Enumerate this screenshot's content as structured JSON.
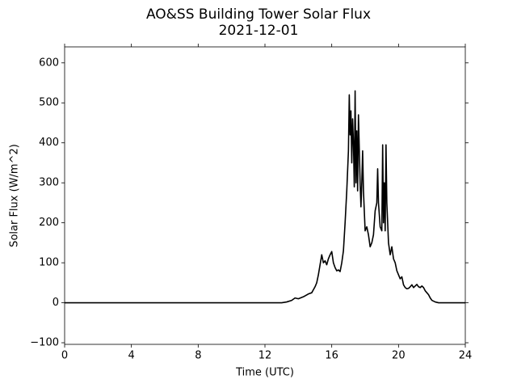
{
  "chart_data": {
    "type": "line",
    "title": "AO&SS Building Tower Solar Flux",
    "subtitle": "2021-12-01",
    "x_label": "Time (UTC)",
    "y_label": "Solar Flux (W/m^2)",
    "color": "#000000",
    "xlim": [
      0,
      24
    ],
    "xticks": [
      0,
      4,
      8,
      12,
      16,
      20,
      24
    ],
    "ylim": [
      -104,
      640
    ],
    "yticks": [
      {
        "value": -100,
        "label": "−100"
      },
      0,
      100,
      200,
      300,
      400,
      500,
      600
    ],
    "x": [
      0,
      13.0,
      13.3,
      13.6,
      13.8,
      14.0,
      14.3,
      14.6,
      14.8,
      15.0,
      15.1,
      15.2,
      15.3,
      15.4,
      15.5,
      15.6,
      15.7,
      15.8,
      15.9,
      16.0,
      16.1,
      16.2,
      16.3,
      16.4,
      16.5,
      16.6,
      16.7,
      16.8,
      16.9,
      17.0,
      17.05,
      17.1,
      17.15,
      17.2,
      17.25,
      17.3,
      17.35,
      17.4,
      17.45,
      17.5,
      17.55,
      17.6,
      17.7,
      17.75,
      17.8,
      17.85,
      17.9,
      18.0,
      18.1,
      18.2,
      18.3,
      18.4,
      18.5,
      18.6,
      18.7,
      18.75,
      18.8,
      18.9,
      19.0,
      19.05,
      19.1,
      19.15,
      19.2,
      19.25,
      19.3,
      19.4,
      19.5,
      19.6,
      19.7,
      19.8,
      19.9,
      20.0,
      20.1,
      20.2,
      20.3,
      20.4,
      20.5,
      20.6,
      20.7,
      20.8,
      20.9,
      21.0,
      21.1,
      21.2,
      21.3,
      21.4,
      21.5,
      21.6,
      21.7,
      21.8,
      21.9,
      22.0,
      22.2,
      22.4,
      24
    ],
    "values": [
      0,
      0,
      2,
      6,
      12,
      10,
      15,
      22,
      25,
      40,
      50,
      70,
      95,
      120,
      100,
      105,
      95,
      110,
      120,
      128,
      100,
      88,
      80,
      82,
      78,
      100,
      130,
      200,
      280,
      380,
      520,
      420,
      480,
      350,
      460,
      400,
      290,
      530,
      300,
      430,
      280,
      470,
      300,
      240,
      300,
      380,
      280,
      180,
      190,
      170,
      140,
      150,
      170,
      230,
      250,
      335,
      250,
      190,
      180,
      395,
      200,
      300,
      180,
      395,
      250,
      150,
      120,
      140,
      110,
      100,
      80,
      70,
      60,
      65,
      45,
      38,
      35,
      36,
      40,
      45,
      38,
      42,
      46,
      40,
      38,
      42,
      38,
      30,
      25,
      20,
      12,
      6,
      2,
      0,
      0
    ]
  }
}
